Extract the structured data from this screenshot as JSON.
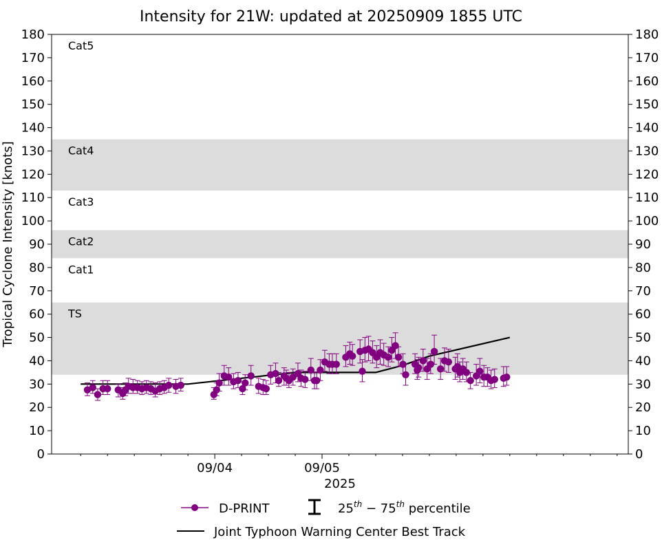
{
  "chart_data": {
    "type": "scatter",
    "title": "Intensity for 21W: updated at 20250909 1855 UTC",
    "ylabel": "Tropical Cyclone Intensity [knots]",
    "xlabel": "2025",
    "ylim": [
      0,
      180
    ],
    "yticks": [
      0,
      10,
      20,
      30,
      40,
      50,
      60,
      70,
      80,
      90,
      100,
      110,
      120,
      130,
      140,
      150,
      160,
      170,
      180
    ],
    "xlim_hours": [
      -36.5,
      92.5
    ],
    "x_units": "hours since 2025-09-04 00 UTC",
    "xtick_major": [
      {
        "hour": 0,
        "label": "09/04"
      },
      {
        "hour": 24,
        "label": "09/05"
      }
    ],
    "xtick_minor_hours": [
      -30,
      -24,
      -18,
      -12,
      -6,
      6,
      12,
      18,
      30,
      36,
      42,
      48,
      54,
      60,
      66,
      72,
      78,
      84,
      90
    ],
    "category_bands": [
      {
        "label": "TS",
        "ymin": 34,
        "ymax": 65,
        "shaded": true
      },
      {
        "label": "Cat1",
        "ymin": 65,
        "ymax": 84,
        "shaded": false
      },
      {
        "label": "Cat2",
        "ymin": 84,
        "ymax": 96,
        "shaded": true
      },
      {
        "label": "Cat3",
        "ymin": 96,
        "ymax": 113,
        "shaded": false
      },
      {
        "label": "Cat4",
        "ymin": 113,
        "ymax": 135,
        "shaded": true
      },
      {
        "label": "Cat5",
        "ymin": 135,
        "ymax": 180,
        "shaded": false
      }
    ],
    "band_color": "#dcdcdc",
    "series": [
      {
        "name": "D-PRINT",
        "color": "#800080",
        "points": [
          {
            "x": -28.5,
            "y": 27.5,
            "lo": 25,
            "hi": 30.5
          },
          {
            "x": -27.3,
            "y": 28.5,
            "lo": 26,
            "hi": 31.5
          },
          {
            "x": -26.2,
            "y": 25.5,
            "lo": 23,
            "hi": 28
          },
          {
            "x": -25.0,
            "y": 28.0,
            "lo": 25.5,
            "hi": 31.5
          },
          {
            "x": -24.0,
            "y": 28.0,
            "lo": 25.5,
            "hi": 31.5
          },
          {
            "x": -21.6,
            "y": 27.5,
            "lo": 24.5,
            "hi": 30
          },
          {
            "x": -20.6,
            "y": 26.0,
            "lo": 23.5,
            "hi": 28.5
          },
          {
            "x": -20.0,
            "y": 27.5,
            "lo": 25,
            "hi": 30.5
          },
          {
            "x": -19.3,
            "y": 29.0,
            "lo": 26,
            "hi": 32.5
          },
          {
            "x": -18.3,
            "y": 28.5,
            "lo": 26,
            "hi": 32
          },
          {
            "x": -17.3,
            "y": 28.5,
            "lo": 26,
            "hi": 31.5
          },
          {
            "x": -16.3,
            "y": 28.0,
            "lo": 25.5,
            "hi": 31
          },
          {
            "x": -15.3,
            "y": 28.5,
            "lo": 26,
            "hi": 31.5
          },
          {
            "x": -14.3,
            "y": 28.0,
            "lo": 25.5,
            "hi": 31
          },
          {
            "x": -13.3,
            "y": 27.0,
            "lo": 24.5,
            "hi": 30.5
          },
          {
            "x": -12.3,
            "y": 28.0,
            "lo": 25.5,
            "hi": 31
          },
          {
            "x": -11.3,
            "y": 28.5,
            "lo": 26,
            "hi": 31.5
          },
          {
            "x": -10.3,
            "y": 29.5,
            "lo": 26.5,
            "hi": 32.5
          },
          {
            "x": -8.7,
            "y": 29.0,
            "lo": 26,
            "hi": 32
          },
          {
            "x": -7.6,
            "y": 29.5,
            "lo": 27,
            "hi": 32.5
          },
          {
            "x": -0.2,
            "y": 25.5,
            "lo": 23.5,
            "hi": 28.5
          },
          {
            "x": 0.4,
            "y": 27.5,
            "lo": 25,
            "hi": 30.5
          },
          {
            "x": 1.0,
            "y": 30.5,
            "lo": 27,
            "hi": 34.5
          },
          {
            "x": 2.1,
            "y": 33.5,
            "lo": 29.5,
            "hi": 38
          },
          {
            "x": 3.1,
            "y": 33.0,
            "lo": 29.5,
            "hi": 37
          },
          {
            "x": 4.2,
            "y": 31.0,
            "lo": 28,
            "hi": 34.5
          },
          {
            "x": 5.2,
            "y": 31.5,
            "lo": 28.5,
            "hi": 35
          },
          {
            "x": 6.2,
            "y": 28.0,
            "lo": 25.5,
            "hi": 31
          },
          {
            "x": 6.8,
            "y": 30.5,
            "lo": 27.5,
            "hi": 34
          },
          {
            "x": 8.1,
            "y": 33.5,
            "lo": 29.5,
            "hi": 38
          },
          {
            "x": 9.8,
            "y": 29.0,
            "lo": 26,
            "hi": 32.5
          },
          {
            "x": 10.8,
            "y": 28.5,
            "lo": 25.5,
            "hi": 32
          },
          {
            "x": 11.5,
            "y": 28.0,
            "lo": 25.5,
            "hi": 31.5
          },
          {
            "x": 12.5,
            "y": 34.0,
            "lo": 30,
            "hi": 38
          },
          {
            "x": 13.6,
            "y": 34.5,
            "lo": 30.5,
            "hi": 39
          },
          {
            "x": 14.3,
            "y": 31.5,
            "lo": 29,
            "hi": 35
          },
          {
            "x": 15.5,
            "y": 33.5,
            "lo": 29.5,
            "hi": 37
          },
          {
            "x": 16.0,
            "y": 32.5,
            "lo": 29.5,
            "hi": 36
          },
          {
            "x": 16.6,
            "y": 31.5,
            "lo": 28.5,
            "hi": 35
          },
          {
            "x": 17.5,
            "y": 33.0,
            "lo": 29.5,
            "hi": 36.5
          },
          {
            "x": 18.6,
            "y": 34.5,
            "lo": 31,
            "hi": 39
          },
          {
            "x": 19.3,
            "y": 32.5,
            "lo": 29,
            "hi": 36
          },
          {
            "x": 20.2,
            "y": 32.0,
            "lo": 28.5,
            "hi": 35.5
          },
          {
            "x": 21.5,
            "y": 36.0,
            "lo": 31.5,
            "hi": 41
          },
          {
            "x": 22.3,
            "y": 31.5,
            "lo": 28,
            "hi": 35
          },
          {
            "x": 22.8,
            "y": 31.5,
            "lo": 28,
            "hi": 35
          },
          {
            "x": 23.6,
            "y": 36.0,
            "lo": 31.5,
            "hi": 40.5
          },
          {
            "x": 24.6,
            "y": 39.5,
            "lo": 35.5,
            "hi": 44.5
          },
          {
            "x": 25.6,
            "y": 38.5,
            "lo": 34.5,
            "hi": 43
          },
          {
            "x": 26.3,
            "y": 38.5,
            "lo": 34.5,
            "hi": 43
          },
          {
            "x": 27.2,
            "y": 38.5,
            "lo": 34.5,
            "hi": 43
          },
          {
            "x": 29.3,
            "y": 41.5,
            "lo": 37.5,
            "hi": 46.5
          },
          {
            "x": 30.2,
            "y": 43.0,
            "lo": 38.5,
            "hi": 48
          },
          {
            "x": 30.8,
            "y": 42.0,
            "lo": 38,
            "hi": 47
          },
          {
            "x": 32.5,
            "y": 44.0,
            "lo": 39,
            "hi": 49
          },
          {
            "x": 33.0,
            "y": 35.5,
            "lo": 31,
            "hi": 40.5
          },
          {
            "x": 33.6,
            "y": 44.5,
            "lo": 39.5,
            "hi": 50
          },
          {
            "x": 34.4,
            "y": 45.0,
            "lo": 40,
            "hi": 50.5
          },
          {
            "x": 35.3,
            "y": 43.5,
            "lo": 39,
            "hi": 48.5
          },
          {
            "x": 36.2,
            "y": 41.5,
            "lo": 37,
            "hi": 46.5
          },
          {
            "x": 37.0,
            "y": 43.5,
            "lo": 38.5,
            "hi": 49
          },
          {
            "x": 37.8,
            "y": 42.5,
            "lo": 38,
            "hi": 47.5
          },
          {
            "x": 38.8,
            "y": 41.5,
            "lo": 37.5,
            "hi": 46
          },
          {
            "x": 39.6,
            "y": 44.5,
            "lo": 39.5,
            "hi": 50
          },
          {
            "x": 40.4,
            "y": 46.5,
            "lo": 41,
            "hi": 52
          },
          {
            "x": 41.1,
            "y": 41.5,
            "lo": 37.5,
            "hi": 46
          },
          {
            "x": 42.1,
            "y": 38.5,
            "lo": 34.5,
            "hi": 43
          },
          {
            "x": 42.7,
            "y": 34.0,
            "lo": 29.5,
            "hi": 38.5
          },
          {
            "x": 44.8,
            "y": 38.5,
            "lo": 34.5,
            "hi": 43
          },
          {
            "x": 45.3,
            "y": 36.0,
            "lo": 32,
            "hi": 40.5
          },
          {
            "x": 45.6,
            "y": 37.0,
            "lo": 33,
            "hi": 41.5
          },
          {
            "x": 46.6,
            "y": 40.0,
            "lo": 35.5,
            "hi": 45
          },
          {
            "x": 47.5,
            "y": 36.5,
            "lo": 32,
            "hi": 41
          },
          {
            "x": 48.3,
            "y": 38.5,
            "lo": 34.5,
            "hi": 43
          },
          {
            "x": 49.1,
            "y": 44.0,
            "lo": 38.5,
            "hi": 51
          },
          {
            "x": 50.5,
            "y": 36.5,
            "lo": 32,
            "hi": 41
          },
          {
            "x": 51.4,
            "y": 40.0,
            "lo": 35.5,
            "hi": 45.5
          },
          {
            "x": 52.3,
            "y": 39.5,
            "lo": 35,
            "hi": 45
          },
          {
            "x": 53.8,
            "y": 36.5,
            "lo": 32,
            "hi": 41.5
          },
          {
            "x": 54.3,
            "y": 37.5,
            "lo": 33,
            "hi": 43
          },
          {
            "x": 54.8,
            "y": 35.0,
            "lo": 31,
            "hi": 39.5
          },
          {
            "x": 55.5,
            "y": 36.5,
            "lo": 32,
            "hi": 41
          },
          {
            "x": 56.3,
            "y": 35.0,
            "lo": 31,
            "hi": 39.5
          },
          {
            "x": 57.2,
            "y": 31.5,
            "lo": 28,
            "hi": 35
          },
          {
            "x": 58.5,
            "y": 33.5,
            "lo": 29.5,
            "hi": 38.5
          },
          {
            "x": 59.3,
            "y": 35.5,
            "lo": 30.5,
            "hi": 41
          },
          {
            "x": 60.2,
            "y": 33.0,
            "lo": 29,
            "hi": 38
          },
          {
            "x": 61.0,
            "y": 33.0,
            "lo": 29,
            "hi": 37
          },
          {
            "x": 61.8,
            "y": 31.5,
            "lo": 28,
            "hi": 36
          },
          {
            "x": 62.6,
            "y": 32.0,
            "lo": 28.5,
            "hi": 36.5
          },
          {
            "x": 64.6,
            "y": 32.5,
            "lo": 29,
            "hi": 37.5
          },
          {
            "x": 65.3,
            "y": 33.0,
            "lo": 29.5,
            "hi": 37.5
          }
        ]
      },
      {
        "name": "Joint Typhoon Warning Center Best Track",
        "color": "#000000",
        "points": [
          {
            "x": -30,
            "y": 30
          },
          {
            "x": -6,
            "y": 30
          },
          {
            "x": 18,
            "y": 35
          },
          {
            "x": 36,
            "y": 35
          },
          {
            "x": 42,
            "y": 38
          },
          {
            "x": 48,
            "y": 42
          },
          {
            "x": 66,
            "y": 50
          }
        ]
      }
    ],
    "legend": {
      "placement": "bottom",
      "entries": [
        {
          "label": "D-PRINT",
          "kind": "marker-line"
        },
        {
          "label_base": "25",
          "label_sup1": "th",
          "label_mid": " − 75",
          "label_sup2": "th",
          "label_tail": " percentile",
          "kind": "errorbar"
        },
        {
          "label": "Joint Typhoon Warning Center Best Track",
          "kind": "line"
        }
      ]
    }
  }
}
